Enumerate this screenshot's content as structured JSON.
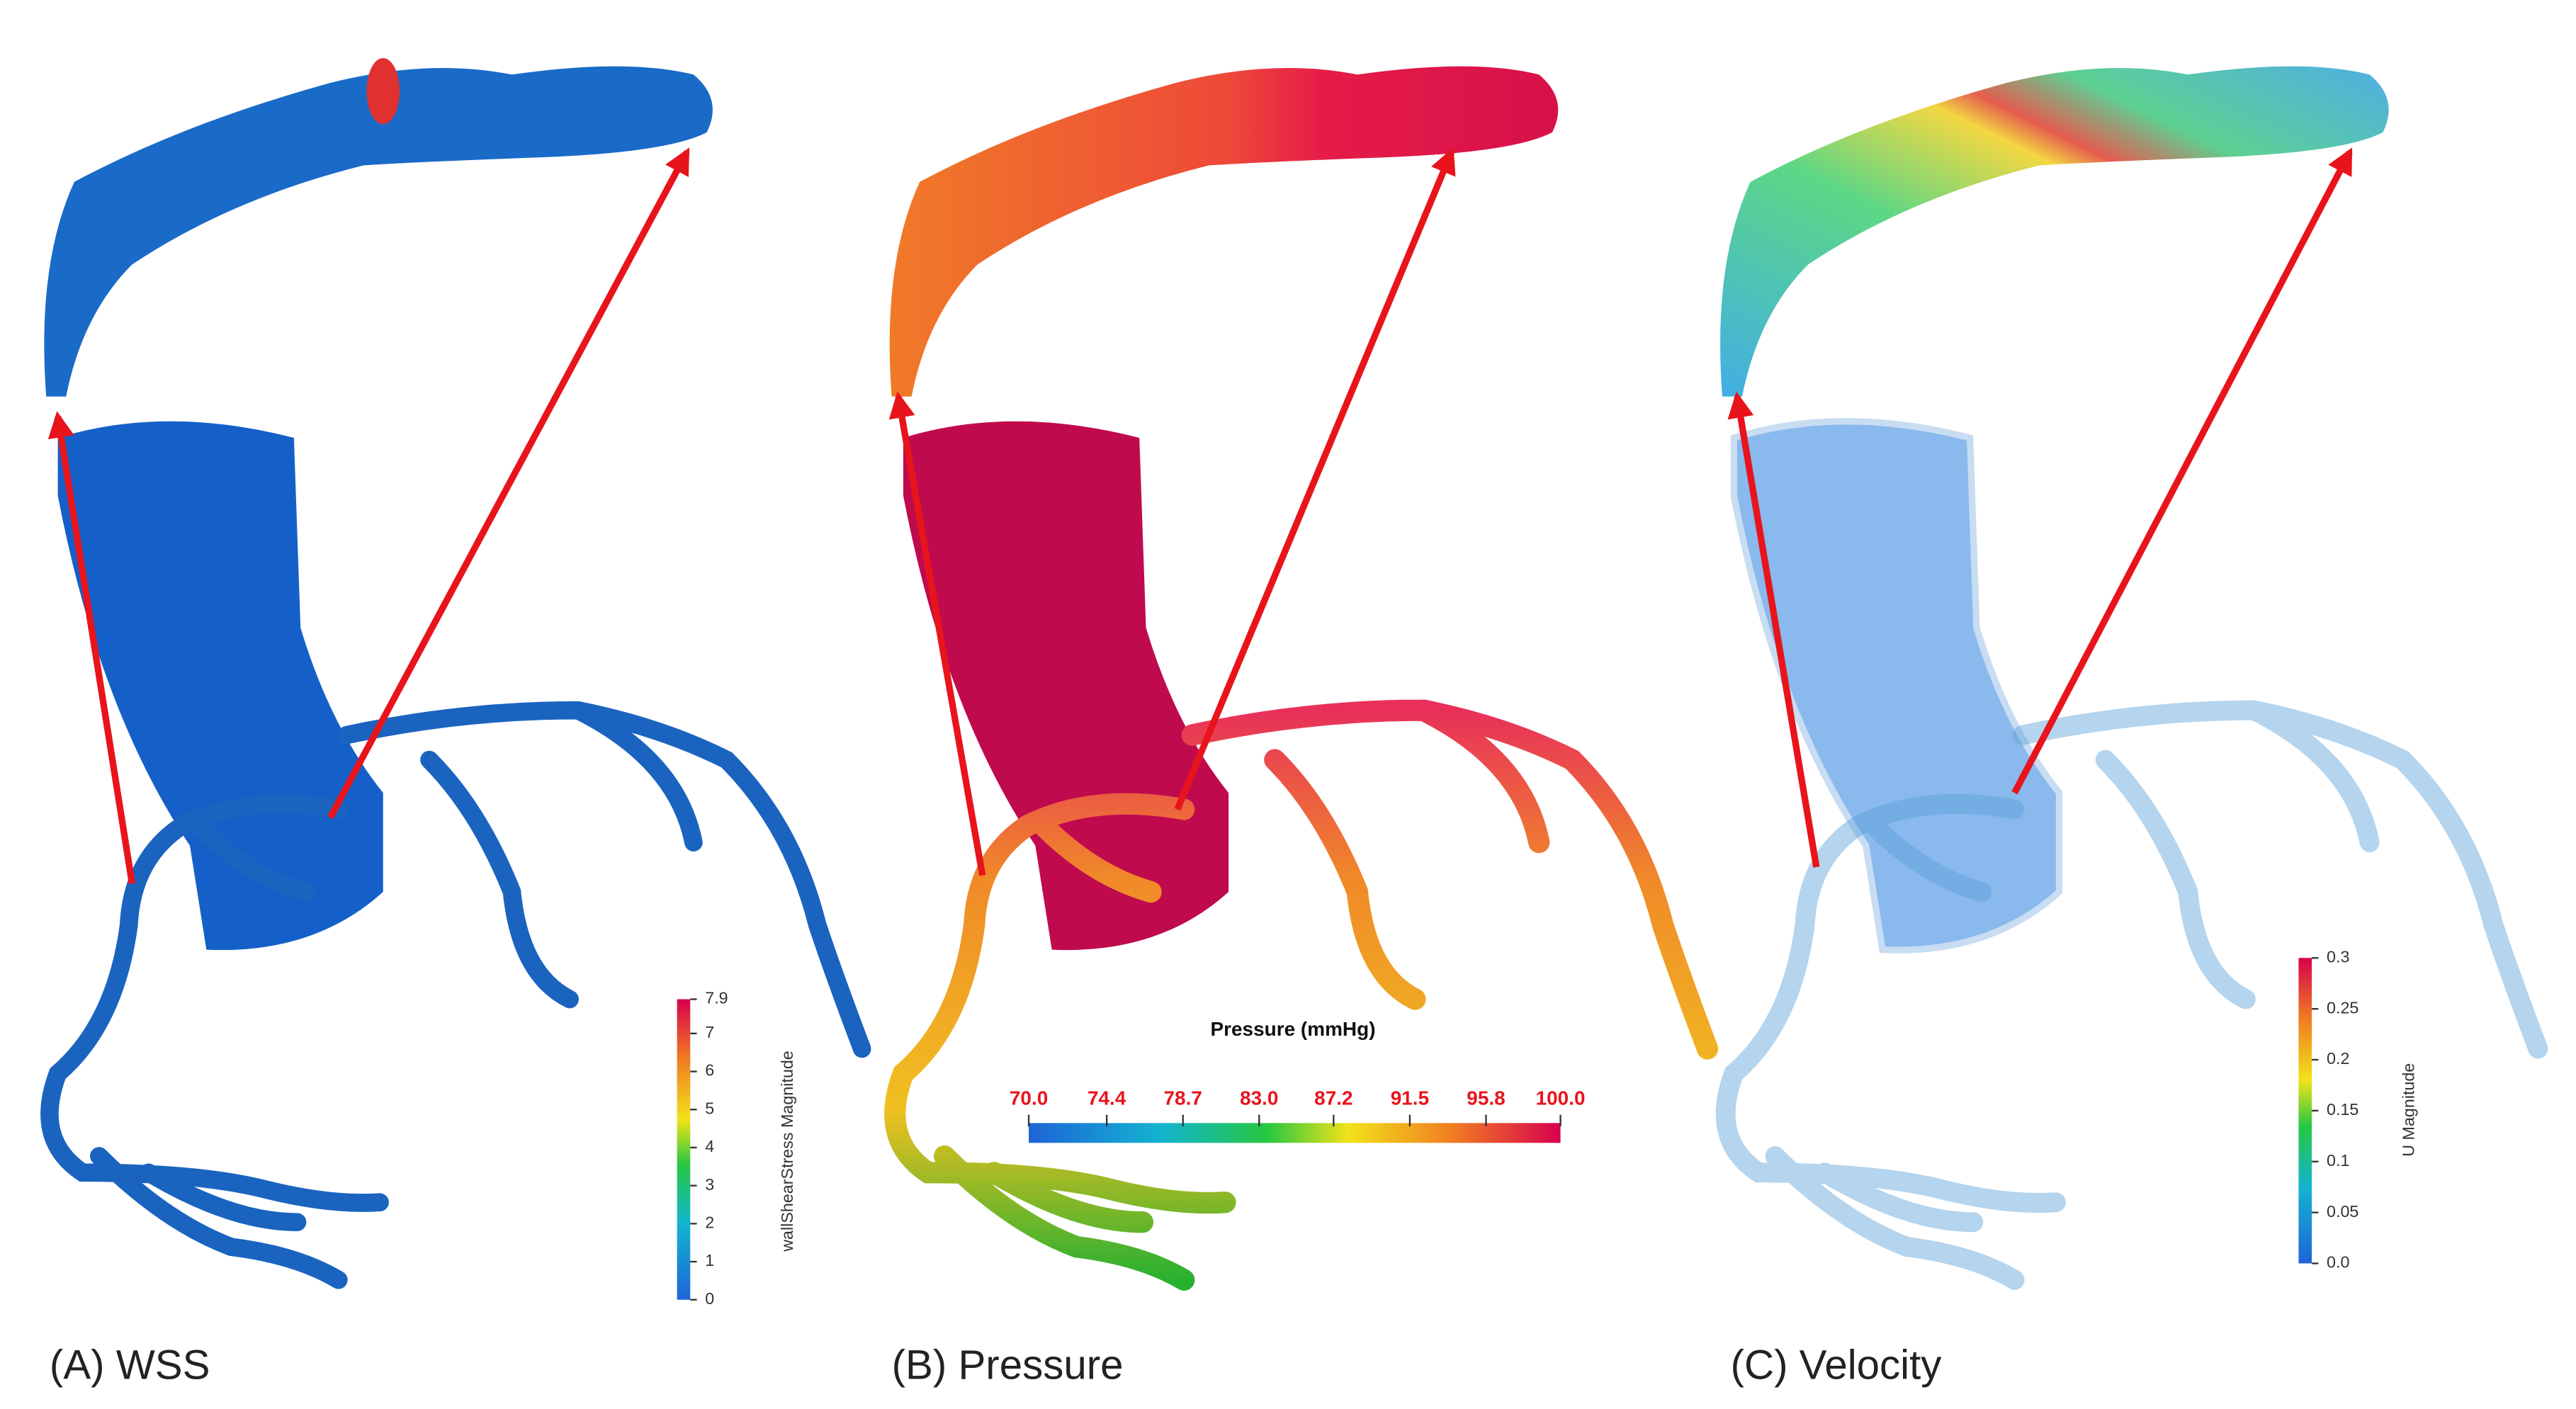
{
  "panels": [
    {
      "label": "(A) WSS",
      "colorbar": {
        "title": "wallShearStress Magnitude",
        "range": [
          0,
          7.9
        ],
        "ticks": [
          0,
          1,
          2,
          3,
          4,
          5,
          6,
          7,
          7.9
        ]
      }
    },
    {
      "label": "(B) Pressure",
      "colorbar": {
        "title": "Pressure (mmHg)",
        "range": [
          70,
          100
        ],
        "ticks": [
          {
            "value": 70,
            "label": "70.0"
          },
          74.4,
          78.7,
          {
            "value": 83,
            "label": "83.0"
          },
          87.2,
          91.5,
          95.8,
          {
            "value": 100,
            "label": "100.0"
          }
        ]
      }
    },
    {
      "label": "(C) Velocity",
      "colorbar": {
        "title": "U Magnitude",
        "range": [
          0,
          0.3
        ],
        "ticks": [
          {
            "value": 0,
            "label": "0.0"
          },
          0.05,
          0.1,
          0.15,
          0.2,
          0.25,
          0.3
        ]
      }
    }
  ]
}
